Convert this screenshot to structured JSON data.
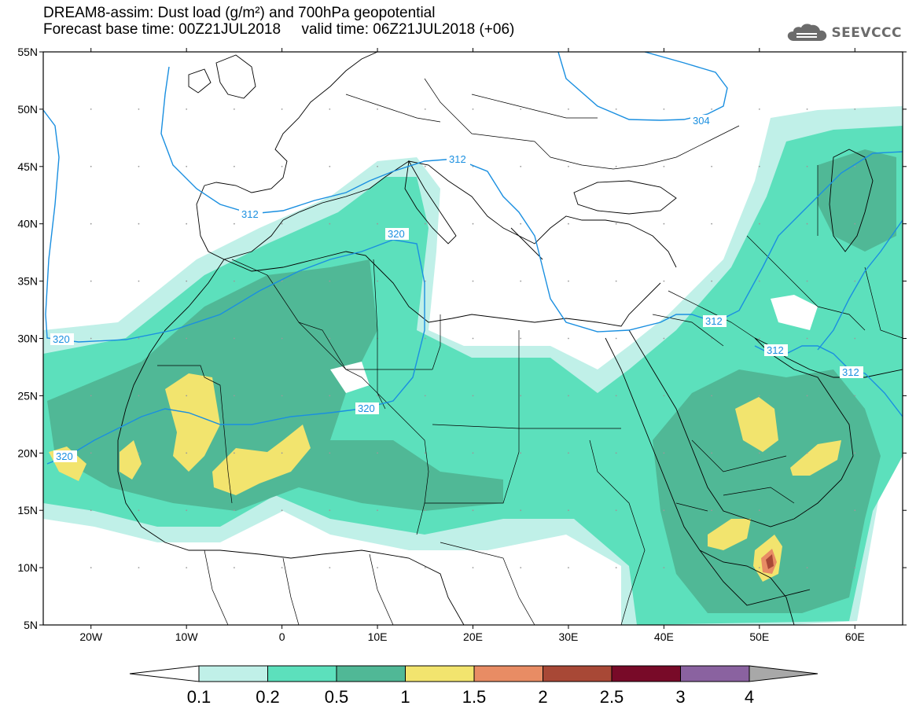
{
  "title": {
    "line1": "DREAM8-assim: Dust load (g/m²) and 700hPa geopotential",
    "line2": "Forecast base time: 00Z21JUL2018     valid time: 06Z21JUL2018 (+06)"
  },
  "logo": {
    "text": "SEEVCCC",
    "icon": "cloud-icon"
  },
  "map": {
    "lat_labels": [
      "55N",
      "50N",
      "45N",
      "40N",
      "35N",
      "30N",
      "25N",
      "20N",
      "15N",
      "10N",
      "5N"
    ],
    "lon_labels": [
      "20W",
      "10W",
      "0",
      "10E",
      "20E",
      "30E",
      "40E",
      "50E",
      "60E"
    ],
    "contour_color": "#1a8fe0",
    "contour_labels": [
      "304",
      "312",
      "312",
      "320",
      "320",
      "320",
      "320",
      "312",
      "312",
      "312"
    ]
  },
  "colorbar": {
    "tick_labels": [
      "0.1",
      "0.2",
      "0.5",
      "1",
      "1.5",
      "2",
      "2.5",
      "3",
      "4"
    ],
    "colors": [
      "#c0f0e8",
      "#5ce0bc",
      "#50b896",
      "#f2e46e",
      "#e88c64",
      "#a84836",
      "#780a28",
      "#8a62a0",
      "#a8a8a8"
    ]
  }
}
